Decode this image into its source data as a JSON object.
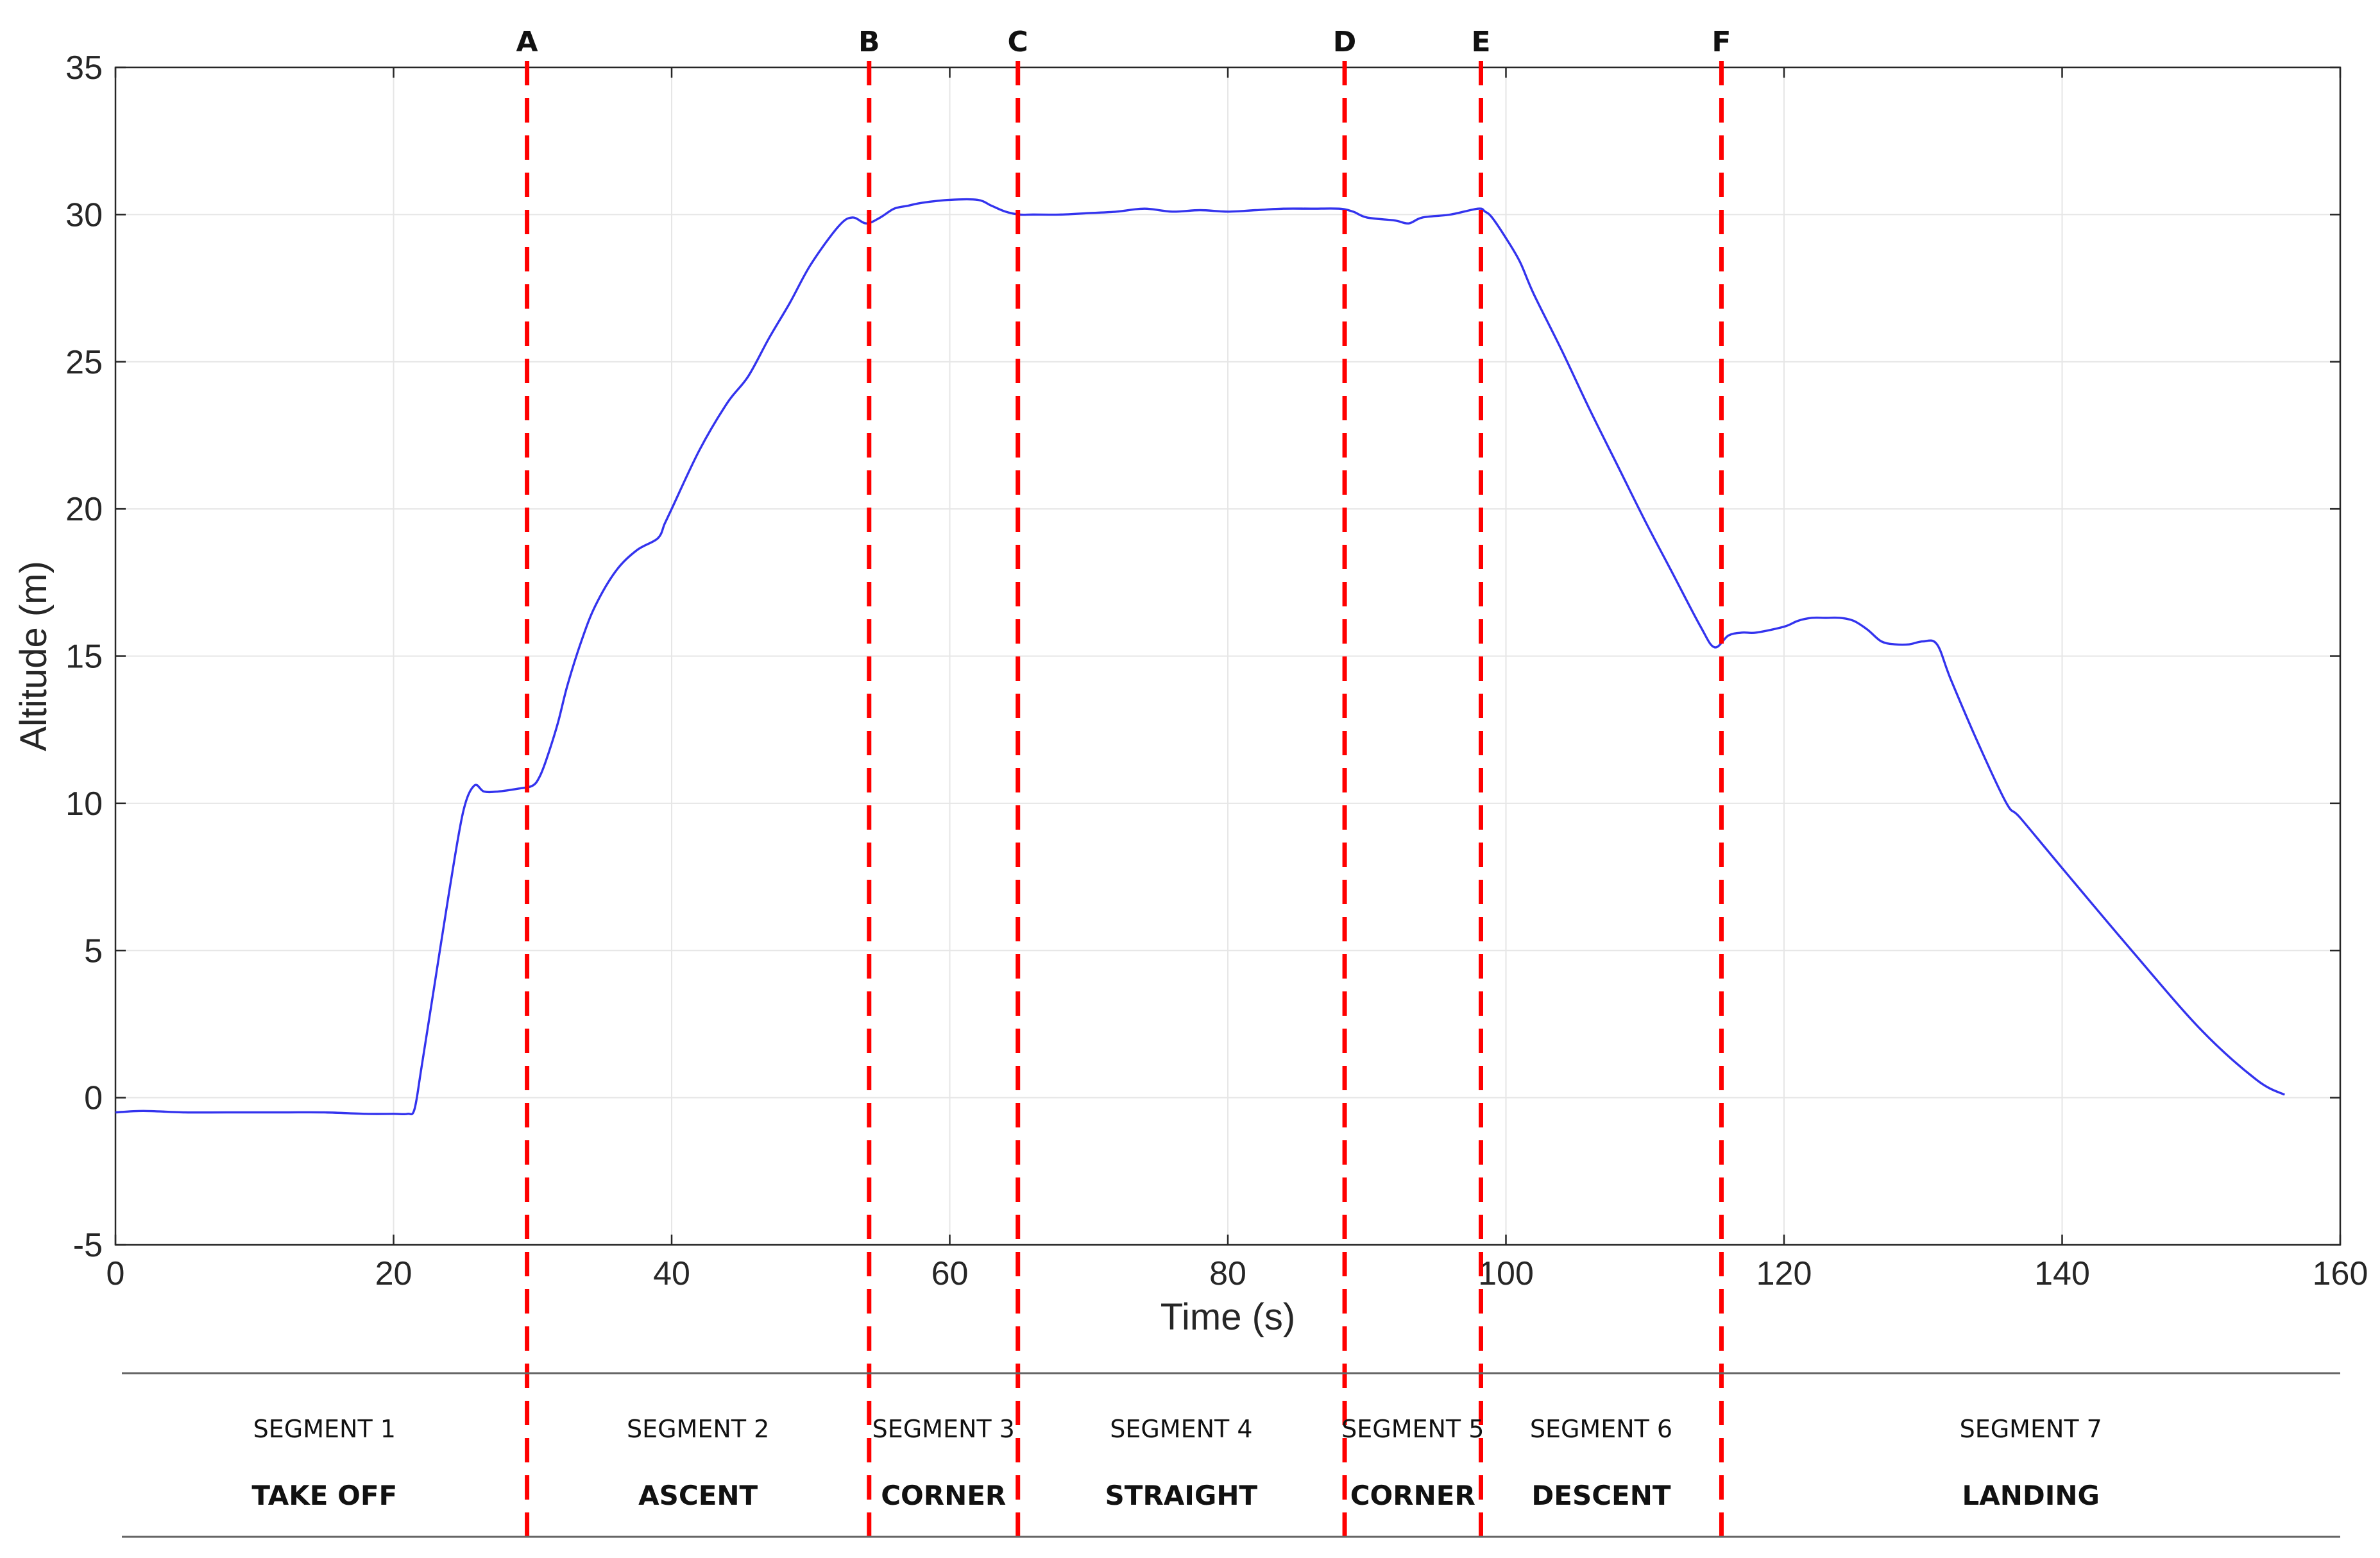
{
  "colors": {
    "series": "#3333ee",
    "markers": "#ff0000",
    "grid": "#e6e6e6",
    "axis": "#262626"
  },
  "chart_data": {
    "type": "line",
    "xlabel": "Time (s)",
    "ylabel": "Altitude (m)",
    "xlim": [
      0,
      160
    ],
    "ylim": [
      -5,
      35
    ],
    "xticks": [
      0,
      20,
      40,
      60,
      80,
      100,
      120,
      140,
      160
    ],
    "yticks": [
      -5,
      0,
      5,
      10,
      15,
      20,
      25,
      30,
      35
    ],
    "grid": true,
    "series": [
      {
        "x": [
          0,
          2,
          5,
          8,
          12,
          15,
          18,
          20,
          21,
          21.5,
          22,
          23,
          24,
          25,
          25.8,
          26.5,
          27.5,
          29,
          30,
          30.5,
          31,
          31.8,
          32.5,
          33.5,
          34.5,
          36,
          37.5,
          39,
          39.5,
          40,
          42,
          44,
          45.5,
          47,
          48.5,
          50,
          52,
          53,
          54,
          55,
          56,
          57,
          58,
          60,
          62,
          63,
          64,
          65,
          66,
          68,
          70,
          72,
          74,
          76,
          78,
          80,
          82,
          84,
          86,
          88,
          89,
          90,
          92,
          93,
          94,
          96,
          98,
          98.5,
          99,
          100,
          101,
          102,
          104,
          106,
          108,
          110,
          112,
          114,
          115,
          116,
          117,
          118,
          120,
          121,
          122,
          123,
          124,
          125,
          126,
          127,
          128,
          129,
          130,
          131,
          132,
          134,
          136,
          137,
          140,
          145,
          150,
          154,
          156
        ],
        "y": [
          -0.5,
          -0.45,
          -0.5,
          -0.5,
          -0.5,
          -0.5,
          -0.55,
          -0.55,
          -0.55,
          -0.4,
          1,
          4,
          7,
          9.7,
          10.6,
          10.4,
          10.4,
          10.5,
          10.6,
          10.9,
          11.5,
          12.7,
          14,
          15.5,
          16.7,
          17.9,
          18.6,
          19,
          19.5,
          20,
          22,
          23.6,
          24.5,
          25.8,
          27,
          28.3,
          29.6,
          29.9,
          29.7,
          29.9,
          30.2,
          30.3,
          30.4,
          30.5,
          30.5,
          30.3,
          30.1,
          30,
          30,
          30,
          30.05,
          30.1,
          30.2,
          30.1,
          30.15,
          30.1,
          30.15,
          30.2,
          30.2,
          30.2,
          30.1,
          29.9,
          29.8,
          29.7,
          29.9,
          30,
          30.2,
          30.1,
          29.9,
          29.2,
          28.4,
          27.3,
          25.4,
          23.4,
          21.5,
          19.6,
          17.8,
          16,
          15.3,
          15.7,
          15.8,
          15.8,
          16,
          16.2,
          16.3,
          16.3,
          16.3,
          16.2,
          15.9,
          15.5,
          15.4,
          15.4,
          15.5,
          15.4,
          14.2,
          12,
          10,
          9.5,
          7.8,
          5,
          2.3,
          0.6,
          0.1
        ]
      }
    ],
    "annotations": [
      {
        "label": "A",
        "x": 29.6
      },
      {
        "label": "B",
        "x": 54.2
      },
      {
        "label": "C",
        "x": 64.9
      },
      {
        "label": "D",
        "x": 88.4
      },
      {
        "label": "E",
        "x": 98.2
      },
      {
        "label": "F",
        "x": 115.5
      }
    ],
    "segments": [
      {
        "number": "SEGMENT 1",
        "name": "TAKE OFF"
      },
      {
        "number": "SEGMENT 2",
        "name": "ASCENT"
      },
      {
        "number": "SEGMENT 3",
        "name": "CORNER"
      },
      {
        "number": "SEGMENT 4",
        "name": "STRAIGHT"
      },
      {
        "number": "SEGMENT 5",
        "name": "CORNER"
      },
      {
        "number": "SEGMENT 6",
        "name": "DESCENT"
      },
      {
        "number": "SEGMENT 7",
        "name": "LANDING"
      }
    ]
  }
}
